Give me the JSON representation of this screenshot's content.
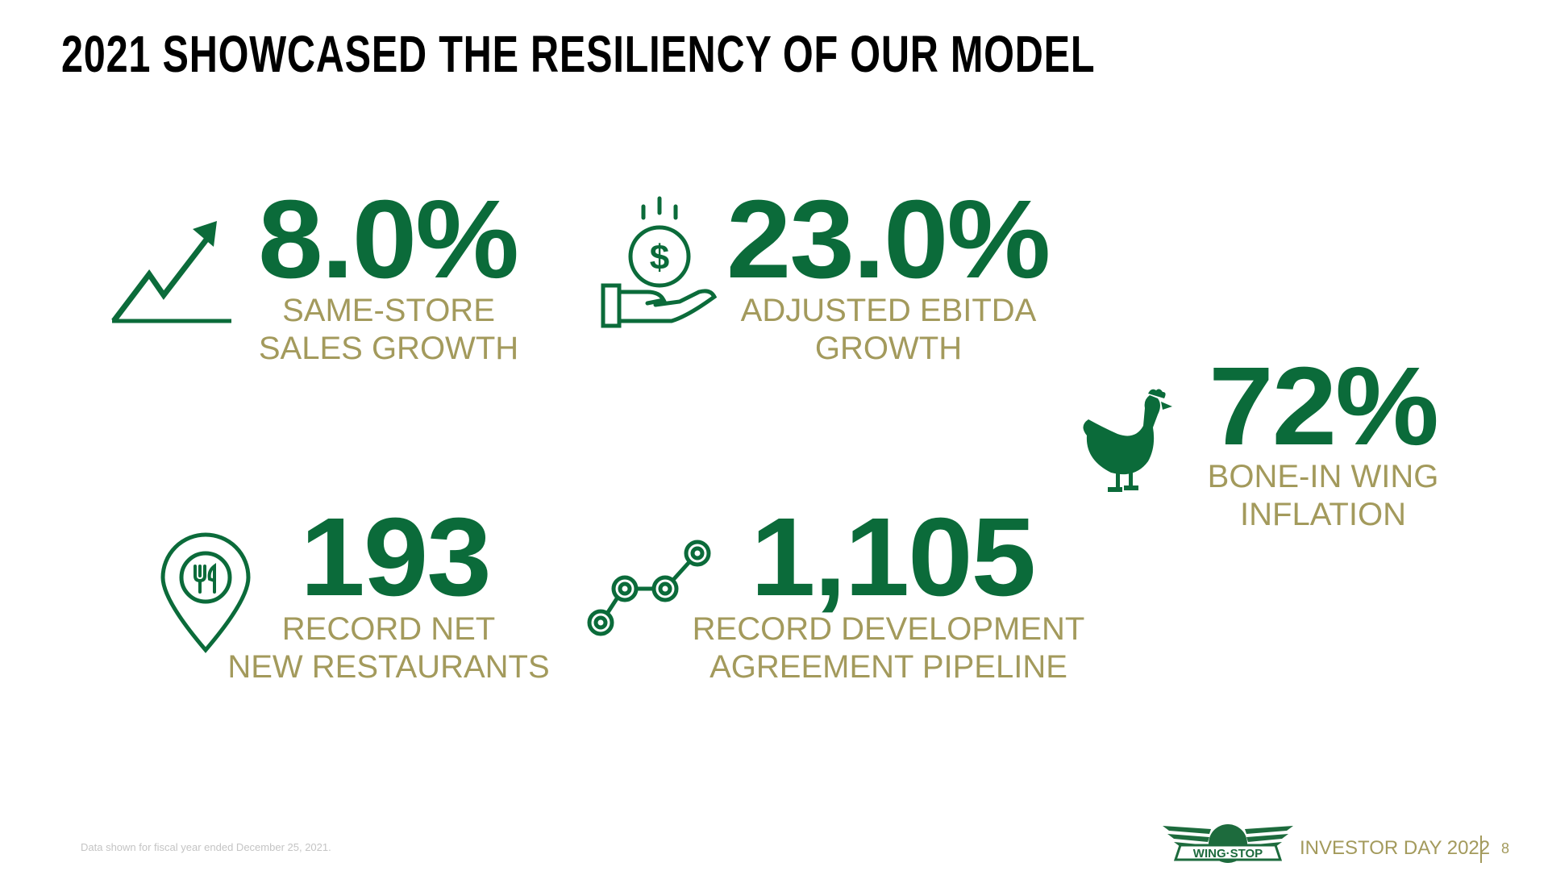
{
  "title": "2021 SHOWCASED THE RESILIENCY OF OUR MODEL",
  "colors": {
    "accent_green": "#0b6b3a",
    "label_olive": "#a39a5c"
  },
  "stats": [
    {
      "value": "8.0%",
      "label_lines": [
        "SAME-STORE",
        "SALES GROWTH"
      ],
      "icon": "trending-up-arrow-icon"
    },
    {
      "value": "23.0%",
      "label_lines": [
        "ADJUSTED EBITDA",
        "GROWTH"
      ],
      "icon": "hand-coin-dollar-icon"
    },
    {
      "value": "72%",
      "label_lines": [
        "BONE-IN WING",
        "INFLATION"
      ],
      "icon": "chicken-icon"
    },
    {
      "value": "193",
      "label_lines": [
        "RECORD NET",
        "NEW RESTAURANTS"
      ],
      "icon": "restaurant-location-pin-icon"
    },
    {
      "value": "1,105",
      "label_lines": [
        "RECORD DEVELOPMENT",
        "AGREEMENT PIPELINE"
      ],
      "icon": "pipeline-nodes-icon"
    }
  ],
  "footer": {
    "footnote": "Data shown for fiscal year ended December 25, 2021.",
    "logo_text": "WING STOP",
    "event": "INVESTOR DAY 2022",
    "page_number": "8"
  }
}
